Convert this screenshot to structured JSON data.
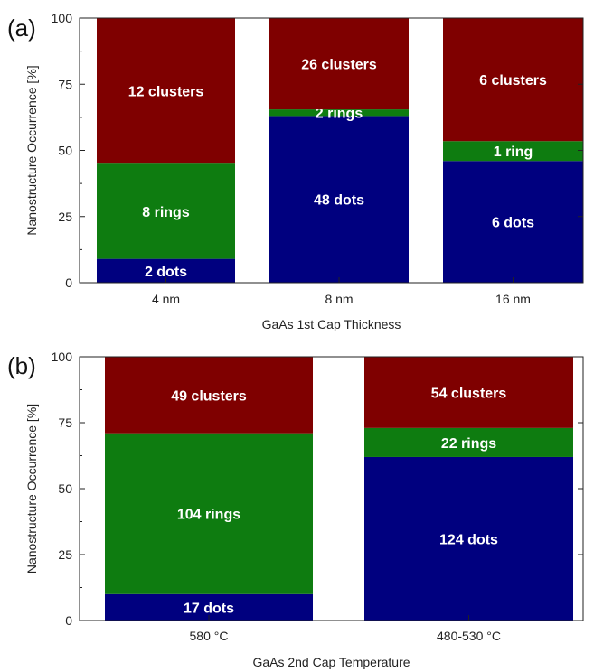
{
  "colors": {
    "clusters": "#7f0000",
    "rings": "#0e7c10",
    "dots": "#00007f"
  },
  "chart_data": [
    {
      "type": "bar",
      "stacked": true,
      "panel_label": "(a)",
      "title": "",
      "xlabel": "GaAs 1st Cap Thickness",
      "ylabel": "Nanostructure Occurrence [%]",
      "ylim": [
        0,
        100
      ],
      "yticks": [
        "0",
        "25",
        "50",
        "75",
        "100"
      ],
      "categories": [
        "4 nm",
        "8 nm",
        "16 nm"
      ],
      "series": [
        {
          "key": "dots",
          "values": [
            9,
            63,
            46
          ],
          "labels": [
            "2 dots",
            "48 dots",
            "6 dots"
          ]
        },
        {
          "key": "rings",
          "values": [
            36,
            2.5,
            7.5
          ],
          "labels": [
            "8 rings",
            "2 rings",
            "1 ring"
          ]
        },
        {
          "key": "clusters",
          "values": [
            55,
            34.5,
            46.5
          ],
          "labels": [
            "12 clusters",
            "26 clusters",
            "6 clusters"
          ]
        }
      ],
      "grid": false,
      "legend": "none"
    },
    {
      "type": "bar",
      "stacked": true,
      "panel_label": "(b)",
      "title": "",
      "xlabel": "GaAs 2nd Cap Temperature",
      "ylabel": "Nanostructure Occurrence [%]",
      "ylim": [
        0,
        100
      ],
      "yticks": [
        "0",
        "25",
        "50",
        "75",
        "100"
      ],
      "categories": [
        "580 °C",
        "480-530 °C"
      ],
      "series": [
        {
          "key": "dots",
          "values": [
            10,
            62
          ],
          "labels": [
            "17 dots",
            "124 dots"
          ]
        },
        {
          "key": "rings",
          "values": [
            61,
            11
          ],
          "labels": [
            "104 rings",
            "22 rings"
          ]
        },
        {
          "key": "clusters",
          "values": [
            29,
            27
          ],
          "labels": [
            "49 clusters",
            "54 clusters"
          ]
        }
      ],
      "grid": false,
      "legend": "none"
    }
  ]
}
